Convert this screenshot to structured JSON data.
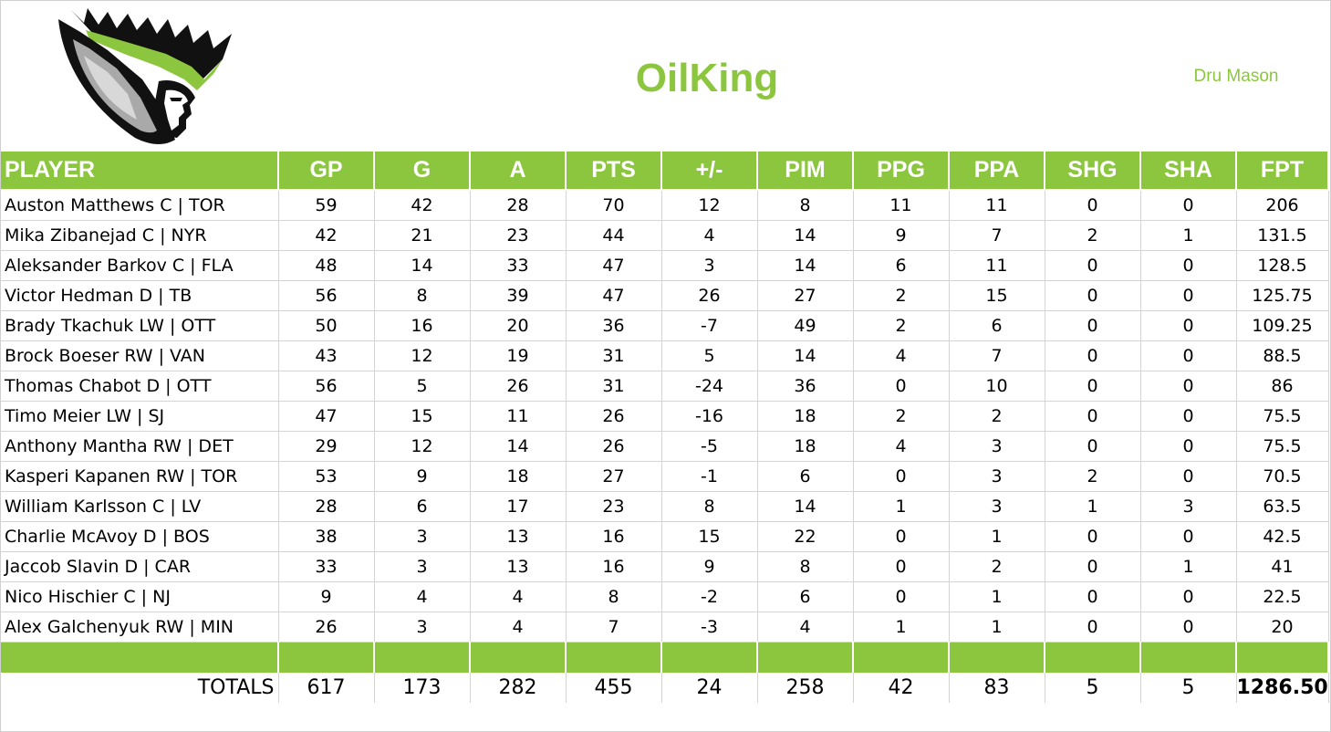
{
  "header": {
    "team_name": "OilKing",
    "owner": "Dru Mason"
  },
  "colors": {
    "accent": "#8cc63f",
    "header_text": "#ffffff"
  },
  "logo": {
    "icon": "crowned-king-head-logo"
  },
  "table": {
    "columns": [
      "PLAYER",
      "GP",
      "G",
      "A",
      "PTS",
      "+/-",
      "PIM",
      "PPG",
      "PPA",
      "SHG",
      "SHA",
      "FPT"
    ],
    "rows": [
      [
        "Auston Matthews C | TOR",
        "59",
        "42",
        "28",
        "70",
        "12",
        "8",
        "11",
        "11",
        "0",
        "0",
        "206"
      ],
      [
        "Mika Zibanejad C | NYR",
        "42",
        "21",
        "23",
        "44",
        "4",
        "14",
        "9",
        "7",
        "2",
        "1",
        "131.5"
      ],
      [
        "Aleksander Barkov C | FLA",
        "48",
        "14",
        "33",
        "47",
        "3",
        "14",
        "6",
        "11",
        "0",
        "0",
        "128.5"
      ],
      [
        "Victor Hedman D | TB",
        "56",
        "8",
        "39",
        "47",
        "26",
        "27",
        "2",
        "15",
        "0",
        "0",
        "125.75"
      ],
      [
        "Brady Tkachuk LW | OTT",
        "50",
        "16",
        "20",
        "36",
        "-7",
        "49",
        "2",
        "6",
        "0",
        "0",
        "109.25"
      ],
      [
        "Brock Boeser RW | VAN",
        "43",
        "12",
        "19",
        "31",
        "5",
        "14",
        "4",
        "7",
        "0",
        "0",
        "88.5"
      ],
      [
        "Thomas Chabot D | OTT",
        "56",
        "5",
        "26",
        "31",
        "-24",
        "36",
        "0",
        "10",
        "0",
        "0",
        "86"
      ],
      [
        "Timo Meier LW | SJ",
        "47",
        "15",
        "11",
        "26",
        "-16",
        "18",
        "2",
        "2",
        "0",
        "0",
        "75.5"
      ],
      [
        "Anthony Mantha RW | DET",
        "29",
        "12",
        "14",
        "26",
        "-5",
        "18",
        "4",
        "3",
        "0",
        "0",
        "75.5"
      ],
      [
        "Kasperi Kapanen RW | TOR",
        "53",
        "9",
        "18",
        "27",
        "-1",
        "6",
        "0",
        "3",
        "2",
        "0",
        "70.5"
      ],
      [
        "William Karlsson C | LV",
        "28",
        "6",
        "17",
        "23",
        "8",
        "14",
        "1",
        "3",
        "1",
        "3",
        "63.5"
      ],
      [
        "Charlie McAvoy D | BOS",
        "38",
        "3",
        "13",
        "16",
        "15",
        "22",
        "0",
        "1",
        "0",
        "0",
        "42.5"
      ],
      [
        "Jaccob Slavin D | CAR",
        "33",
        "3",
        "13",
        "16",
        "9",
        "8",
        "0",
        "2",
        "0",
        "1",
        "41"
      ],
      [
        "Nico Hischier C | NJ",
        "9",
        "4",
        "4",
        "8",
        "-2",
        "6",
        "0",
        "1",
        "0",
        "0",
        "22.5"
      ],
      [
        "Alex Galchenyuk RW | MIN",
        "26",
        "3",
        "4",
        "7",
        "-3",
        "4",
        "1",
        "1",
        "0",
        "0",
        "20"
      ]
    ],
    "totals": [
      "TOTALS",
      "617",
      "173",
      "282",
      "455",
      "24",
      "258",
      "42",
      "83",
      "5",
      "5",
      "1286.50"
    ]
  }
}
